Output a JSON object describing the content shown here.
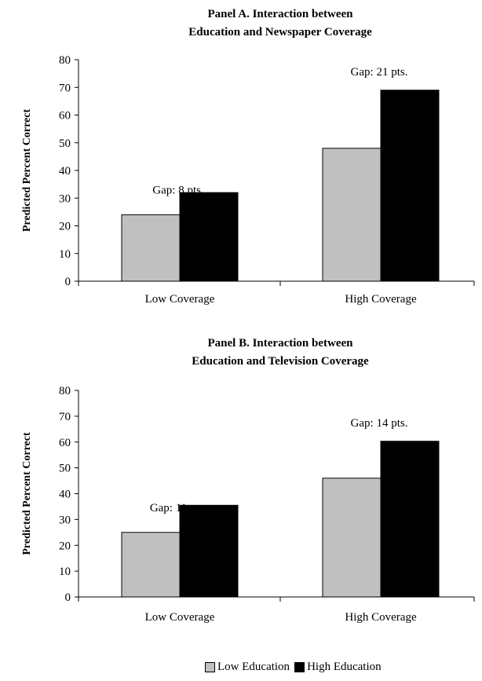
{
  "chart_data": [
    {
      "type": "bar",
      "title": [
        "Panel A. Interaction between",
        "Education and Newspaper Coverage"
      ],
      "categories": [
        "Low Coverage",
        "High Coverage"
      ],
      "series": [
        {
          "name": "Low Education",
          "values": [
            24,
            48
          ],
          "color": "#c0c0c0"
        },
        {
          "name": "High Education",
          "values": [
            32,
            69
          ],
          "color": "#000000"
        }
      ],
      "annotations": [
        "Gap: 8 pts.",
        "Gap: 21 pts."
      ],
      "ylabel": "Predicted Percent Correct",
      "xlabel": "",
      "ylim": [
        0,
        80
      ],
      "yticks": [
        0,
        10,
        20,
        30,
        40,
        50,
        60,
        70,
        80
      ],
      "grid": false
    },
    {
      "type": "bar",
      "title": [
        "Panel B. Interaction between",
        "Education and Television Coverage"
      ],
      "categories": [
        "Low Coverage",
        "High Coverage"
      ],
      "series": [
        {
          "name": "Low Education",
          "values": [
            25,
            46
          ],
          "color": "#c0c0c0"
        },
        {
          "name": "High Education",
          "values": [
            35.5,
            60.3
          ],
          "color": "#000000"
        }
      ],
      "annotations": [
        "Gap: 11 pts.",
        "Gap: 14 pts."
      ],
      "ylabel": "Predicted Percent Correct",
      "xlabel": "",
      "ylim": [
        0,
        80
      ],
      "yticks": [
        0,
        10,
        20,
        30,
        40,
        50,
        60,
        70,
        80
      ],
      "grid": false
    }
  ],
  "legend": {
    "placement": "bottom",
    "items": [
      {
        "label": "Low Education",
        "color": "#c0c0c0"
      },
      {
        "label": "High Education",
        "color": "#000000"
      }
    ]
  }
}
